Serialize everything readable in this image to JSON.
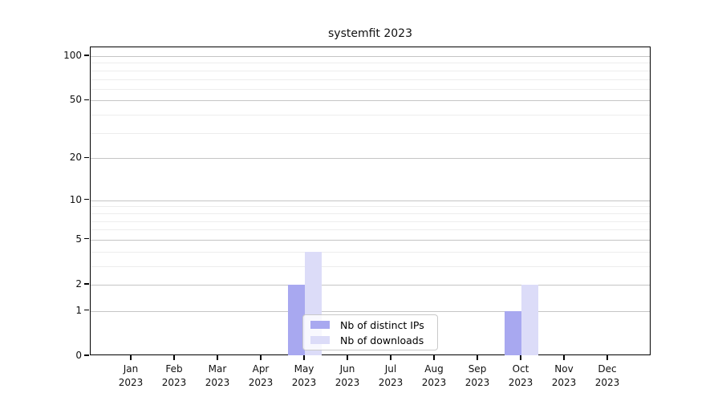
{
  "chart_data": {
    "type": "bar",
    "title": "systemfit 2023",
    "categories": [
      "Jan",
      "Feb",
      "Mar",
      "Apr",
      "May",
      "Jun",
      "Jul",
      "Aug",
      "Sep",
      "Oct",
      "Nov",
      "Dec"
    ],
    "category_year": "2023",
    "series": [
      {
        "name": "Nb of distinct IPs",
        "color": "#a8a8f0",
        "values": [
          0,
          0,
          0,
          0,
          2,
          0,
          0,
          0,
          0,
          1,
          0,
          0
        ]
      },
      {
        "name": "Nb of downloads",
        "color": "#dcdcf8",
        "values": [
          0,
          0,
          0,
          0,
          4,
          0,
          0,
          0,
          0,
          2,
          0,
          0
        ]
      }
    ],
    "yscale": "log1p",
    "ylim": [
      0,
      115
    ],
    "yticks": [
      0,
      1,
      2,
      5,
      10,
      20,
      50,
      100
    ],
    "minor_gridlines": [
      3,
      4,
      6,
      7,
      8,
      9,
      30,
      40,
      60,
      70,
      80,
      90
    ],
    "grid": "horizontal",
    "legend_position": "lower center"
  }
}
